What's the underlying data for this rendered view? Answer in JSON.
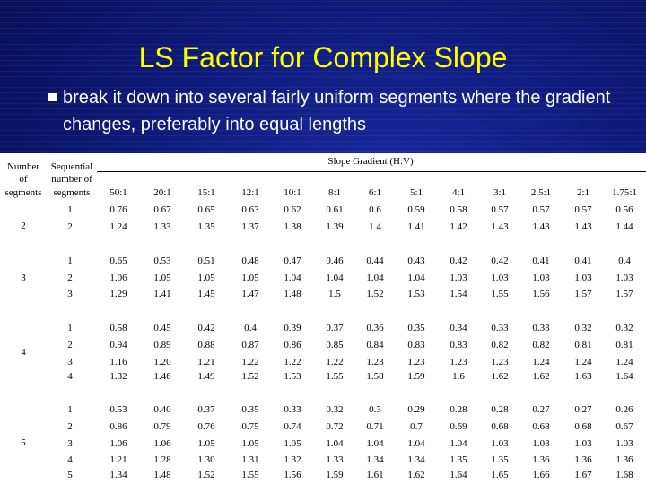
{
  "slide": {
    "title": "LS Factor for Complex Slope",
    "bullet": "break it down into several fairly uniform segments where the gradient changes, preferably into equal lengths"
  },
  "table": {
    "header": {
      "number": [
        "Number",
        "of",
        "segments"
      ],
      "sequential": [
        "Sequential",
        "number of",
        "segments"
      ],
      "group": "Slope Gradient (H:V)"
    },
    "gradients": [
      "50:1",
      "20:1",
      "15:1",
      "12:1",
      "10:1",
      "8:1",
      "6:1",
      "5:1",
      "4:1",
      "3:1",
      "2.5:1",
      "2:1",
      "1.75:1"
    ],
    "groups": [
      {
        "n": "2",
        "seq": [
          "1",
          "2"
        ],
        "rows": [
          [
            "0.76",
            "0.67",
            "0.65",
            "0.63",
            "0.62",
            "0.61",
            "0.6",
            "0.59",
            "0.58",
            "0.57",
            "0.57",
            "0.57",
            "0.56"
          ],
          [
            "1.24",
            "1.33",
            "1.35",
            "1.37",
            "1.38",
            "1.39",
            "1.4",
            "1.41",
            "1.42",
            "1.43",
            "1.43",
            "1.43",
            "1.44"
          ]
        ]
      },
      {
        "n": "3",
        "seq": [
          "1",
          "2",
          "3"
        ],
        "rows": [
          [
            "0.65",
            "0.53",
            "0.51",
            "0.48",
            "0.47",
            "0.46",
            "0.44",
            "0.43",
            "0.42",
            "0.42",
            "0.41",
            "0.41",
            "0.4"
          ],
          [
            "1.06",
            "1.05",
            "1.05",
            "1.05",
            "1.04",
            "1.04",
            "1.04",
            "1.04",
            "1.03",
            "1.03",
            "1.03",
            "1.03",
            "1.03"
          ],
          [
            "1.29",
            "1.41",
            "1.45",
            "1.47",
            "1.48",
            "1.5",
            "1.52",
            "1.53",
            "1.54",
            "1.55",
            "1.56",
            "1.57",
            "1.57"
          ]
        ]
      },
      {
        "n": "4",
        "seq": [
          "1",
          "2",
          "3",
          "4"
        ],
        "rows": [
          [
            "0.58",
            "0.45",
            "0.42",
            "0.4",
            "0.39",
            "0.37",
            "0.36",
            "0.35",
            "0.34",
            "0.33",
            "0.33",
            "0.32",
            "0.32"
          ],
          [
            "0.94",
            "0.89",
            "0.88",
            "0.87",
            "0.86",
            "0.85",
            "0.84",
            "0.83",
            "0.83",
            "0.82",
            "0.82",
            "0.81",
            "0.81"
          ],
          [
            "1.16",
            "1.20",
            "1.21",
            "1.22",
            "1.22",
            "1.22",
            "1.23",
            "1.23",
            "1.23",
            "1.23",
            "1.24",
            "1.24",
            "1.24"
          ],
          [
            "1.32",
            "1.46",
            "1.49",
            "1.52",
            "1.53",
            "1.55",
            "1.58",
            "1.59",
            "1.6",
            "1.62",
            "1.62",
            "1.63",
            "1.64"
          ]
        ]
      },
      {
        "n": "5",
        "seq": [
          "1",
          "2",
          "3",
          "4",
          "5"
        ],
        "rows": [
          [
            "0.53",
            "0.40",
            "0.37",
            "0.35",
            "0.33",
            "0.32",
            "0.3",
            "0.29",
            "0.28",
            "0.28",
            "0.27",
            "0.27",
            "0.26"
          ],
          [
            "0.86",
            "0.79",
            "0.76",
            "0.75",
            "0.74",
            "0.72",
            "0.71",
            "0.7",
            "0.69",
            "0.68",
            "0.68",
            "0.68",
            "0.67"
          ],
          [
            "1.06",
            "1.06",
            "1.05",
            "1.05",
            "1.05",
            "1.04",
            "1.04",
            "1.04",
            "1.04",
            "1.03",
            "1.03",
            "1.03",
            "1.03"
          ],
          [
            "1.21",
            "1.28",
            "1.30",
            "1.31",
            "1.32",
            "1.33",
            "1.34",
            "1.34",
            "1.35",
            "1.35",
            "1.36",
            "1.36",
            "1.36"
          ],
          [
            "1.34",
            "1.48",
            "1.52",
            "1.55",
            "1.56",
            "1.59",
            "1.61",
            "1.62",
            "1.64",
            "1.65",
            "1.66",
            "1.67",
            "1.68"
          ]
        ]
      }
    ]
  }
}
